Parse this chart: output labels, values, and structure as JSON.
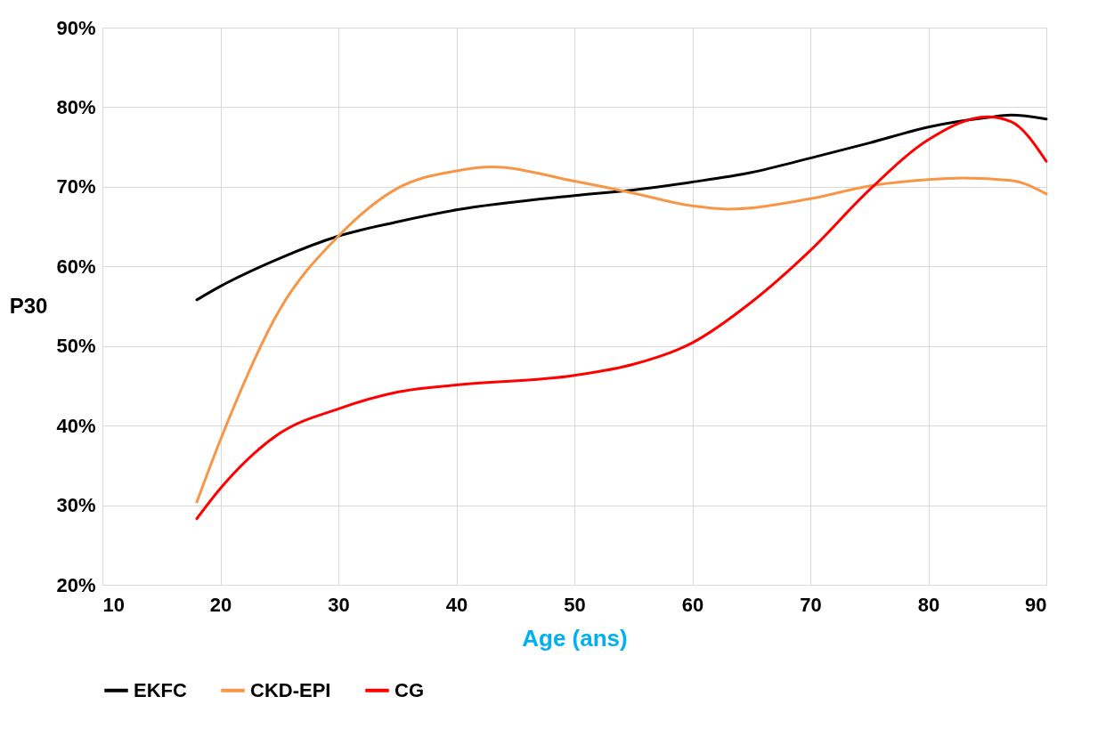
{
  "chart_data": {
    "type": "line",
    "xlabel": "Age (ans)",
    "ylabel": "P30",
    "xlim": [
      10,
      90
    ],
    "xticks": [
      10,
      20,
      30,
      40,
      50,
      60,
      70,
      80,
      90
    ],
    "ylim": [
      20,
      90
    ],
    "yticks": [
      {
        "value": 20,
        "label": "20%"
      },
      {
        "value": 30,
        "label": "30%"
      },
      {
        "value": 40,
        "label": "40%"
      },
      {
        "value": 50,
        "label": "50%"
      },
      {
        "value": 60,
        "label": "60%"
      },
      {
        "value": 70,
        "label": "70%"
      },
      {
        "value": 80,
        "label": "80%"
      },
      {
        "value": 90,
        "label": "90%"
      }
    ],
    "grid": true,
    "legend": "bottom",
    "series": [
      {
        "name": "EKFC",
        "color": "#000000",
        "x": [
          18,
          20,
          25,
          30,
          35,
          40,
          50,
          55,
          60,
          65,
          70,
          75,
          80,
          85,
          87,
          90
        ],
        "values": [
          55.8,
          57.5,
          61,
          63.8,
          65.6,
          67.1,
          68.9,
          69.6,
          70.6,
          71.8,
          73.6,
          75.5,
          77.5,
          78.7,
          79,
          78.5
        ]
      },
      {
        "name": "CKD-EPI",
        "color": "#f79646",
        "x": [
          18,
          20,
          25,
          30,
          35,
          40,
          43,
          50,
          55,
          60,
          63,
          70,
          75,
          80,
          83,
          87,
          90
        ],
        "values": [
          30.4,
          38.2,
          54.5,
          63.8,
          69.8,
          72,
          72.5,
          70.7,
          69.2,
          67.6,
          67.2,
          68.5,
          70.1,
          70.9,
          71.1,
          70.8,
          69.1
        ]
      },
      {
        "name": "CG",
        "color": "#ff0000",
        "x": [
          18,
          20,
          25,
          30,
          35,
          40,
          50,
          55,
          60,
          65,
          70,
          75,
          80,
          85,
          87,
          90
        ],
        "values": [
          28.3,
          32.1,
          39,
          42.1,
          44.2,
          45.1,
          46.3,
          47.7,
          50.4,
          55.5,
          62,
          69.6,
          75.9,
          78.8,
          78.2,
          73.2
        ]
      }
    ]
  }
}
